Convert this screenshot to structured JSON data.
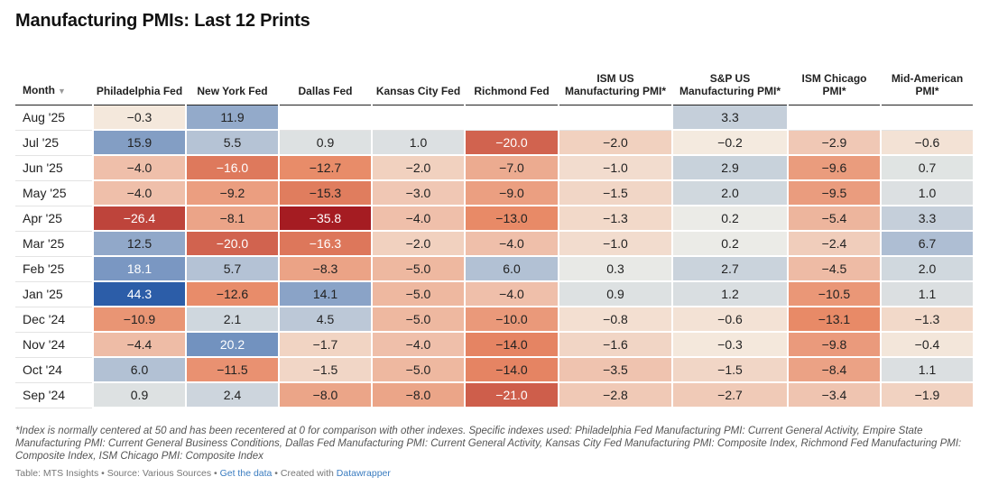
{
  "title": "Manufacturing PMIs: Last 12 Prints",
  "footnote": "*Index is normally centered at 50 and has been recentered at 0 for comparison with other indexes. Specific indexes used: Philadelphia Fed Manufacturing PMI: Current General Activity, Empire State Manufacturing PMI: Current General Business Conditions, Dallas Fed Manufacturing PMI: Current General Activity, Kansas City Fed Manufacturing PMI: Composite Index, Richmond Fed Manufacturing PMI: Composite Index, ISM Chicago PMI: Composite Index",
  "source": {
    "prefix": "Table: MTS Insights • Source: Various Sources • ",
    "get_data": "Get the data",
    "middle": " • Created with ",
    "datawrapper": "Datawrapper"
  },
  "colors": {
    "strong_positive": "#2c5da8",
    "neutral": "#f5f3ea",
    "strong_negative": "#a51c22"
  },
  "chart_data": {
    "type": "table",
    "month_header": "Month",
    "columns": [
      "Philadelphia Fed",
      "New York Fed",
      "Dallas Fed",
      "Kansas City Fed",
      "Richmond Fed",
      "ISM US Manufacturing PMI*",
      "S&P US Manufacturing PMI*",
      "ISM Chicago PMI*",
      "Mid-American PMI*"
    ],
    "rows": [
      {
        "month": "Aug '25",
        "values": [
          "−0.3",
          "11.9",
          "",
          "",
          "",
          "",
          "3.3",
          "",
          ""
        ]
      },
      {
        "month": "Jul '25",
        "values": [
          "15.9",
          "5.5",
          "0.9",
          "1.0",
          "−20.0",
          "−2.0",
          "−0.2",
          "−2.9",
          "−0.6"
        ]
      },
      {
        "month": "Jun '25",
        "values": [
          "−4.0",
          "−16.0",
          "−12.7",
          "−2.0",
          "−7.0",
          "−1.0",
          "2.9",
          "−9.6",
          "0.7"
        ]
      },
      {
        "month": "May '25",
        "values": [
          "−4.0",
          "−9.2",
          "−15.3",
          "−3.0",
          "−9.0",
          "−1.5",
          "2.0",
          "−9.5",
          "1.0"
        ]
      },
      {
        "month": "Apr '25",
        "values": [
          "−26.4",
          "−8.1",
          "−35.8",
          "−4.0",
          "−13.0",
          "−1.3",
          "0.2",
          "−5.4",
          "3.3"
        ]
      },
      {
        "month": "Mar '25",
        "values": [
          "12.5",
          "−20.0",
          "−16.3",
          "−2.0",
          "−4.0",
          "−1.0",
          "0.2",
          "−2.4",
          "6.7"
        ]
      },
      {
        "month": "Feb '25",
        "values": [
          "18.1",
          "5.7",
          "−8.3",
          "−5.0",
          "6.0",
          "0.3",
          "2.7",
          "−4.5",
          "2.0"
        ]
      },
      {
        "month": "Jan '25",
        "values": [
          "44.3",
          "−12.6",
          "14.1",
          "−5.0",
          "−4.0",
          "0.9",
          "1.2",
          "−10.5",
          "1.1"
        ]
      },
      {
        "month": "Dec '24",
        "values": [
          "−10.9",
          "2.1",
          "4.5",
          "−5.0",
          "−10.0",
          "−0.8",
          "−0.6",
          "−13.1",
          "−1.3"
        ]
      },
      {
        "month": "Nov '24",
        "values": [
          "−4.4",
          "20.2",
          "−1.7",
          "−4.0",
          "−14.0",
          "−1.6",
          "−0.3",
          "−9.8",
          "−0.4"
        ]
      },
      {
        "month": "Oct '24",
        "values": [
          "6.0",
          "−11.5",
          "−1.5",
          "−5.0",
          "−14.0",
          "−3.5",
          "−1.5",
          "−8.4",
          "1.1"
        ]
      },
      {
        "month": "Sep '24",
        "values": [
          "0.9",
          "2.4",
          "−8.0",
          "−8.0",
          "−21.0",
          "−2.8",
          "−2.7",
          "−3.4",
          "−1.9"
        ]
      }
    ]
  }
}
